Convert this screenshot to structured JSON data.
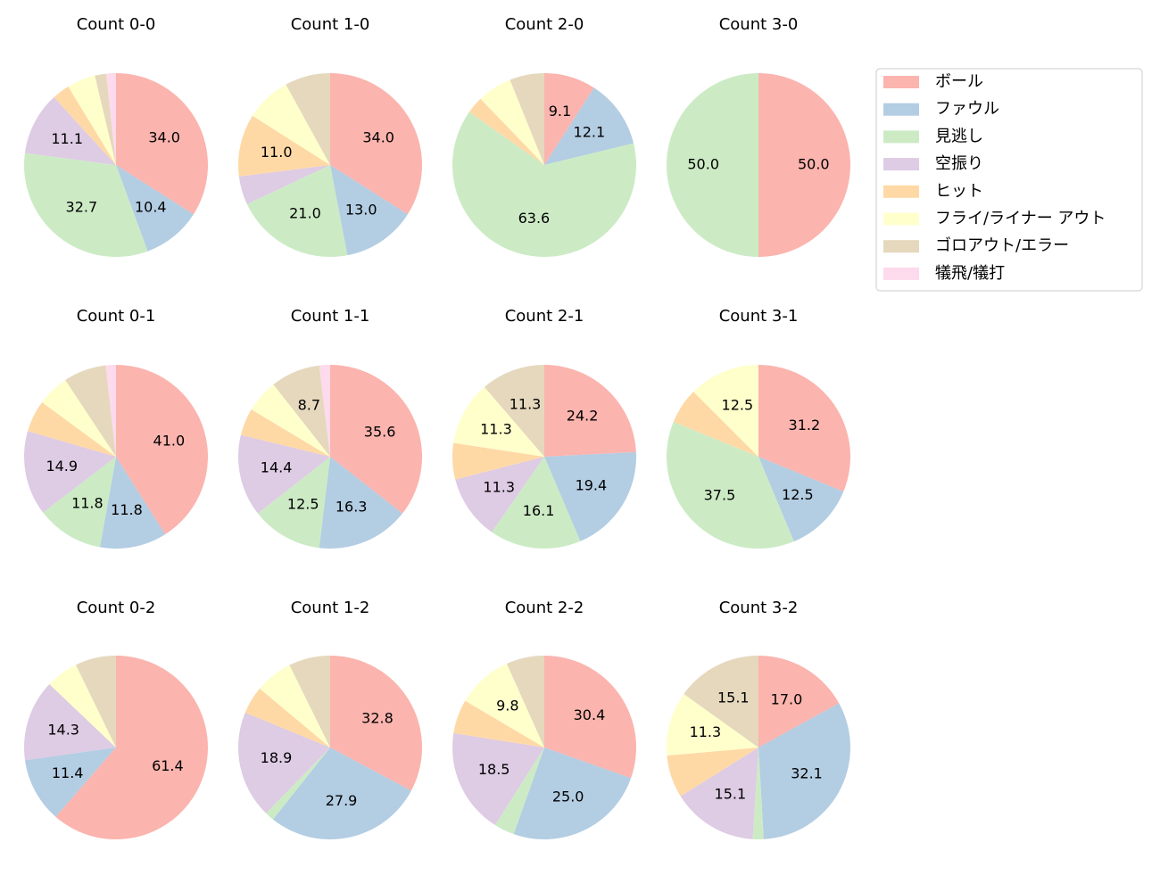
{
  "chart_data": {
    "type": "pie",
    "categories": [
      "ボール",
      "ファウル",
      "見逃し",
      "空振り",
      "ヒット",
      "フライ/ライナー アウト",
      "ゴロアウト/エラー",
      "犠飛/犠打"
    ],
    "colors": [
      "#fbb4ae",
      "#b3cde3",
      "#ccebc5",
      "#decbe4",
      "#fed9a6",
      "#ffffcc",
      "#e5d8bd",
      "#fddaec"
    ],
    "pies": [
      {
        "title": "Count 0-0",
        "values": [
          34.0,
          10.4,
          32.7,
          11.1,
          3.1,
          5.0,
          2.0,
          1.7
        ],
        "value_labels": [
          "34.0",
          "10.4",
          "32.7",
          "11.1",
          null,
          null,
          null,
          null
        ]
      },
      {
        "title": "Count 1-0",
        "values": [
          34.0,
          13.0,
          21.0,
          5.0,
          11.0,
          8.0,
          8.0,
          0
        ],
        "value_labels": [
          "34.0",
          "13.0",
          "21.0",
          null,
          "11.0",
          null,
          null,
          null
        ]
      },
      {
        "title": "Count 2-0",
        "values": [
          9.1,
          12.1,
          63.6,
          0,
          3.0,
          6.1,
          6.1,
          0
        ],
        "value_labels": [
          "9.1",
          "12.1",
          "63.6",
          null,
          null,
          null,
          null,
          null
        ]
      },
      {
        "title": "Count 3-0",
        "values": [
          50.0,
          0,
          50.0,
          0,
          0,
          0,
          0,
          0
        ],
        "value_labels": [
          "50.0",
          null,
          "50.0",
          null,
          null,
          null,
          null,
          null
        ]
      },
      {
        "title": "Count 0-1",
        "values": [
          41.0,
          11.8,
          11.8,
          14.9,
          5.6,
          5.6,
          7.5,
          1.8
        ],
        "value_labels": [
          "41.0",
          "11.8",
          "11.8",
          "14.9",
          null,
          null,
          null,
          null
        ]
      },
      {
        "title": "Count 1-1",
        "values": [
          35.6,
          16.3,
          12.5,
          14.4,
          4.8,
          5.8,
          8.7,
          1.9
        ],
        "value_labels": [
          "35.6",
          "16.3",
          "12.5",
          "14.4",
          null,
          null,
          "8.7",
          null
        ]
      },
      {
        "title": "Count 2-1",
        "values": [
          24.2,
          19.4,
          16.1,
          11.3,
          6.4,
          11.3,
          11.3,
          0
        ],
        "value_labels": [
          "24.2",
          "19.4",
          "16.1",
          "11.3",
          null,
          "11.3",
          "11.3",
          null
        ]
      },
      {
        "title": "Count 3-1",
        "values": [
          31.2,
          12.5,
          37.5,
          0,
          6.3,
          12.5,
          0,
          0
        ],
        "value_labels": [
          "31.2",
          "12.5",
          "37.5",
          null,
          null,
          "12.5",
          null,
          null
        ]
      },
      {
        "title": "Count 0-2",
        "values": [
          61.4,
          11.4,
          0,
          14.3,
          0,
          5.7,
          7.2,
          0
        ],
        "value_labels": [
          "61.4",
          "11.4",
          null,
          "14.3",
          null,
          null,
          null,
          null
        ]
      },
      {
        "title": "Count 1-2",
        "values": [
          32.8,
          27.9,
          1.6,
          18.9,
          4.9,
          6.6,
          7.3,
          0
        ],
        "value_labels": [
          "32.8",
          "27.9",
          null,
          "18.9",
          null,
          null,
          null,
          null
        ]
      },
      {
        "title": "Count 2-2",
        "values": [
          30.4,
          25.0,
          3.6,
          18.5,
          6.0,
          9.8,
          6.7,
          0
        ],
        "value_labels": [
          "30.4",
          "25.0",
          null,
          "18.5",
          null,
          "9.8",
          null,
          null
        ]
      },
      {
        "title": "Count 3-2",
        "values": [
          17.0,
          32.1,
          1.9,
          15.1,
          7.5,
          11.3,
          15.1,
          0
        ],
        "value_labels": [
          "17.0",
          "32.1",
          null,
          "15.1",
          null,
          "11.3",
          "15.1",
          null
        ]
      }
    ]
  }
}
